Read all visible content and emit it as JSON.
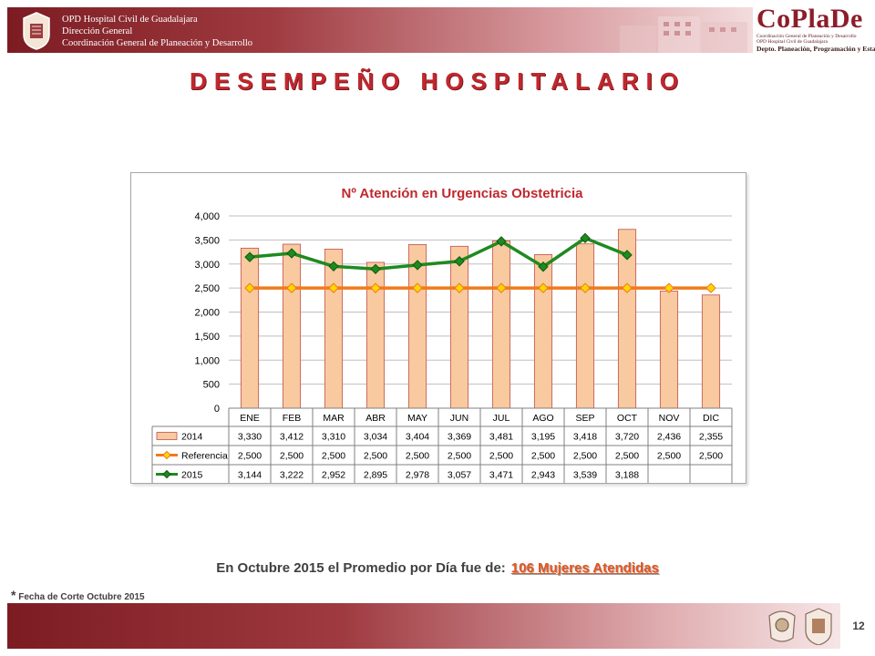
{
  "header": {
    "lines": [
      "OPD Hospital Civil de Guadalajara",
      "Dirección General",
      "Coordinación General de Planeación y Desarrollo"
    ]
  },
  "logo": {
    "title": "CoPlaDe",
    "line1": "Coordinación General de Planeación y Desarrollo",
    "line2": "OPD Hospital Civil de Guadalajara",
    "line3": "Depto. Planeación, Programación y Estadística"
  },
  "page_title": "DESEMPEÑO HOSPITALARIO",
  "summary": {
    "text": "En Octubre 2015 el Promedio por Día fue de:",
    "highlight": "106  Mujeres Atendidas"
  },
  "footnote": {
    "asterisk": "*",
    "text": "Fecha de Corte Octubre 2015"
  },
  "page_number": "12",
  "colors": {
    "bar_fill": "#f9c9a0",
    "bar_stroke": "#c0504d",
    "reference": "#f07a1a",
    "reference_marker": "#ffd700",
    "series_2015": "#1f8a1f",
    "title_red": "#c0282e"
  },
  "chart_data": {
    "type": "bar",
    "title": "Nº Atención en Urgencias Obstetricia",
    "categories": [
      "ENE",
      "FEB",
      "MAR",
      "ABR",
      "MAY",
      "JUN",
      "JUL",
      "AGO",
      "SEP",
      "OCT",
      "NOV",
      "DIC"
    ],
    "ylim": [
      0,
      4000
    ],
    "yticks": [
      "0",
      "500",
      "1,000",
      "1,500",
      "2,000",
      "2,500",
      "3,000",
      "3,500",
      "4,000"
    ],
    "grid": true,
    "legend": "data-table",
    "series": [
      {
        "name": "2014",
        "type": "bar",
        "values": [
          3330,
          3412,
          3310,
          3034,
          3404,
          3369,
          3481,
          3195,
          3418,
          3720,
          2436,
          2355
        ],
        "labels": [
          "3,330",
          "3,412",
          "3,310",
          "3,034",
          "3,404",
          "3,369",
          "3,481",
          "3,195",
          "3,418",
          "3,720",
          "2,436",
          "2,355"
        ]
      },
      {
        "name": "Referencia",
        "type": "line",
        "values": [
          2500,
          2500,
          2500,
          2500,
          2500,
          2500,
          2500,
          2500,
          2500,
          2500,
          2500,
          2500
        ],
        "labels": [
          "2,500",
          "2,500",
          "2,500",
          "2,500",
          "2,500",
          "2,500",
          "2,500",
          "2,500",
          "2,500",
          "2,500",
          "2,500",
          "2,500"
        ]
      },
      {
        "name": "2015",
        "type": "line",
        "values": [
          3144,
          3222,
          2952,
          2895,
          2978,
          3057,
          3471,
          2943,
          3539,
          3188,
          null,
          null
        ],
        "labels": [
          "3,144",
          "3,222",
          "2,952",
          "2,895",
          "2,978",
          "3,057",
          "3,471",
          "2,943",
          "3,539",
          "3,188",
          "",
          ""
        ]
      }
    ]
  }
}
